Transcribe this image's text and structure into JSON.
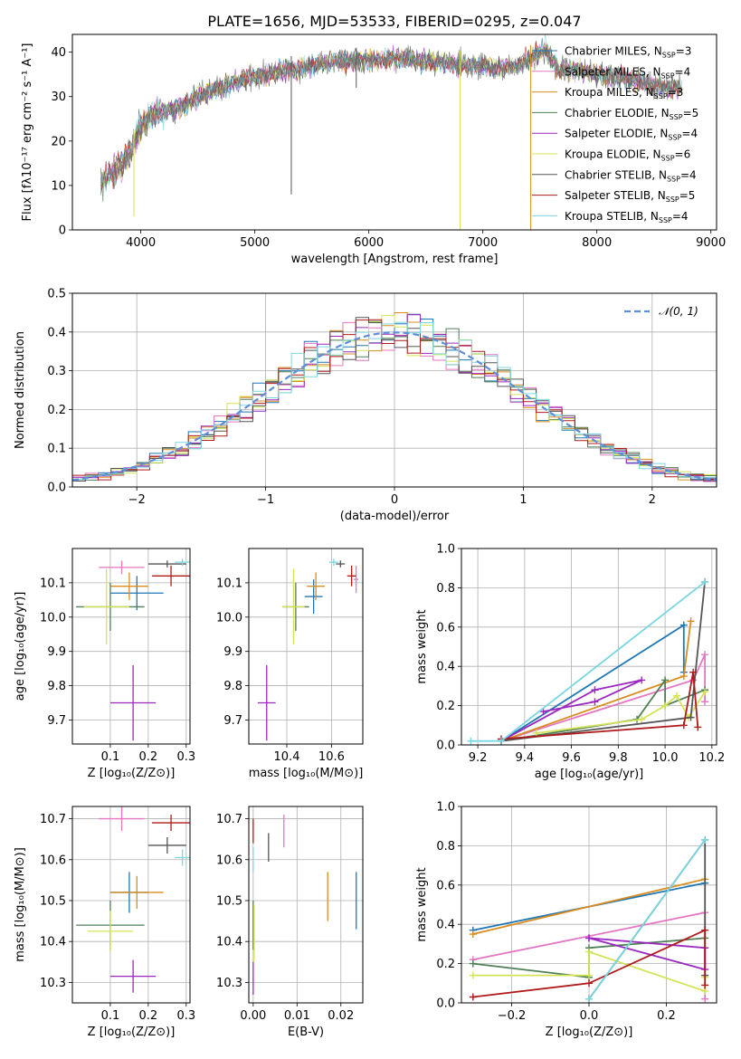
{
  "figure": {
    "title": "PLATE=1656, MJD=53533, FIBERID=0295, z=0.047"
  },
  "models": [
    {
      "id": "chabrier-miles",
      "label": "Chabrier MILES, N",
      "sub": "SSP",
      "count": "=3",
      "color": "#1f77b4"
    },
    {
      "id": "salpeter-miles",
      "label": "Salpeter MILES, N",
      "sub": "SSP",
      "count": "=4",
      "color": "#e377c2"
    },
    {
      "id": "kroupa-miles",
      "label": "Kroupa MILES, N",
      "sub": "SSP",
      "count": "=3",
      "color": "#d98c1f"
    },
    {
      "id": "chabrier-elodie",
      "label": "Chabrier ELODIE, N",
      "sub": "SSP",
      "count": "=5",
      "color": "#4f7f55"
    },
    {
      "id": "salpeter-elodie",
      "label": "Salpeter ELODIE, N",
      "sub": "SSP",
      "count": "=4",
      "color": "#9b27c0"
    },
    {
      "id": "kroupa-elodie",
      "label": "Kroupa ELODIE, N",
      "sub": "SSP",
      "count": "=6",
      "color": "#d4e357"
    },
    {
      "id": "chabrier-stelib",
      "label": "Chabrier STELIB, N",
      "sub": "SSP",
      "count": "=4",
      "color": "#555555"
    },
    {
      "id": "salpeter-stelib",
      "label": "Salpeter STELIB, N",
      "sub": "SSP",
      "count": "=5",
      "color": "#b01a1a"
    },
    {
      "id": "kroupa-stelib",
      "label": "Kroupa STELIB, N",
      "sub": "SSP",
      "count": "=4",
      "color": "#7ad6e0"
    }
  ],
  "chart_data": [
    {
      "id": "spectrum",
      "type": "line",
      "xlabel": "wavelength [Angstrom, rest frame]",
      "ylabel": "Flux [fλ10⁻¹⁷ erg cm⁻² s⁻¹ A⁻¹]",
      "xlim": [
        3400,
        9050
      ],
      "ylim": [
        0,
        44
      ],
      "xticks": [
        4000,
        5000,
        6000,
        7000,
        8000,
        9000
      ],
      "yticks": [
        0,
        10,
        20,
        30,
        40
      ],
      "grid": false,
      "legend": "top-right",
      "continuum_x": [
        3650,
        3700,
        3800,
        3900,
        4000,
        4100,
        4300,
        4500,
        4700,
        4900,
        5100,
        5300,
        5500,
        5700,
        5900,
        6100,
        6300,
        6500,
        6700,
        6900,
        7100,
        7300,
        7450,
        7550,
        7650,
        7800,
        8000,
        8200,
        8400,
        8600,
        8750
      ],
      "continuum_y": [
        10,
        12,
        14,
        17,
        23,
        26,
        27,
        30,
        32,
        34,
        35,
        36,
        37,
        38,
        38,
        38.5,
        38.5,
        38,
        37.5,
        37,
        36.5,
        37,
        39,
        41,
        36,
        36,
        35,
        34.5,
        33,
        32,
        32
      ],
      "drops": [
        {
          "x": 5320,
          "y": 8
        },
        {
          "x": 5890,
          "y": 32
        },
        {
          "x": 6800,
          "y": 0
        },
        {
          "x": 7420,
          "y": 0
        },
        {
          "x": 3940,
          "y": 3
        }
      ]
    },
    {
      "id": "residual-histogram",
      "type": "line",
      "xlabel": "(data-model)/error",
      "ylabel": "Normed distribution",
      "xlim": [
        -2.5,
        2.5
      ],
      "ylim": [
        0,
        0.5
      ],
      "xticks": [
        -2,
        -1,
        0,
        1,
        2
      ],
      "yticks": [
        0.0,
        0.1,
        0.2,
        0.3,
        0.4,
        0.5
      ],
      "grid": true,
      "legend": "top-right",
      "reference": {
        "name": "𝒩(0, 1)",
        "color": "#5b8fd9",
        "mean": 0,
        "sigma": 1
      },
      "bin_width": 0.1
    },
    {
      "id": "age-vs-metallicity",
      "type": "scatter",
      "xlabel": "Z [log₁₀(Z/Z⊙)]",
      "ylabel": "age  [log₁₀(age/yr)]",
      "xlim": [
        0,
        0.31
      ],
      "ylim": [
        9.63,
        10.2
      ],
      "xticks": [
        0.1,
        0.2,
        0.3
      ],
      "yticks": [
        9.7,
        9.8,
        9.9,
        10.0,
        10.1
      ],
      "grid": true,
      "points": [
        {
          "model": "chabrier-miles",
          "x": 0.17,
          "xerr": 0.07,
          "y": 10.07,
          "yerr": 0.05
        },
        {
          "model": "salpeter-miles",
          "x": 0.13,
          "xerr": 0.06,
          "y": 10.145,
          "yerr": 0.02
        },
        {
          "model": "kroupa-miles",
          "x": 0.15,
          "xerr": 0.05,
          "y": 10.09,
          "yerr": 0.04
        },
        {
          "model": "chabrier-elodie",
          "x": 0.1,
          "xerr": 0.09,
          "y": 10.03,
          "yerr": 0.07
        },
        {
          "model": "salpeter-elodie",
          "x": 0.16,
          "xerr": 0.06,
          "y": 9.75,
          "yerr": 0.11
        },
        {
          "model": "kroupa-elodie",
          "x": 0.09,
          "xerr": 0.06,
          "y": 10.03,
          "yerr": 0.11
        },
        {
          "model": "chabrier-stelib",
          "x": 0.25,
          "xerr": 0.05,
          "y": 10.155,
          "yerr": 0.01
        },
        {
          "model": "salpeter-stelib",
          "x": 0.26,
          "xerr": 0.05,
          "y": 10.12,
          "yerr": 0.03
        },
        {
          "model": "kroupa-stelib",
          "x": 0.29,
          "xerr": 0.02,
          "y": 10.16,
          "yerr": 0.01
        }
      ]
    },
    {
      "id": "age-vs-mass",
      "type": "scatter",
      "xlabel": "mass [log₁₀(M/M⊙)]",
      "ylabel": "",
      "xlim": [
        10.23,
        10.74
      ],
      "ylim": [
        9.63,
        10.2
      ],
      "xticks": [
        10.4,
        10.6
      ],
      "yticks": [
        9.7,
        9.8,
        9.9,
        10.0,
        10.1
      ],
      "grid": true,
      "points": [
        {
          "model": "chabrier-miles",
          "x": 10.52,
          "xerr": 0.04,
          "y": 10.06,
          "yerr": 0.05
        },
        {
          "model": "salpeter-miles",
          "x": 10.71,
          "xerr": 0.01,
          "y": 10.11,
          "yerr": 0.04
        },
        {
          "model": "kroupa-miles",
          "x": 10.53,
          "xerr": 0.04,
          "y": 10.09,
          "yerr": 0.04
        },
        {
          "model": "chabrier-elodie",
          "x": 10.44,
          "xerr": 0.06,
          "y": 10.03,
          "yerr": 0.07
        },
        {
          "model": "salpeter-elodie",
          "x": 10.31,
          "xerr": 0.04,
          "y": 9.75,
          "yerr": 0.11
        },
        {
          "model": "kroupa-elodie",
          "x": 10.43,
          "xerr": 0.05,
          "y": 10.03,
          "yerr": 0.11
        },
        {
          "model": "chabrier-stelib",
          "x": 10.64,
          "xerr": 0.02,
          "y": 10.155,
          "yerr": 0.01
        },
        {
          "model": "salpeter-stelib",
          "x": 10.69,
          "xerr": 0.02,
          "y": 10.12,
          "yerr": 0.03
        },
        {
          "model": "kroupa-stelib",
          "x": 10.61,
          "xerr": 0.02,
          "y": 10.16,
          "yerr": 0.01
        }
      ]
    },
    {
      "id": "massweight-vs-age",
      "type": "line",
      "xlabel": "age  [log₁₀(age/yr)]",
      "ylabel": "mass weight",
      "xlim": [
        9.13,
        10.22
      ],
      "ylim": [
        0,
        1.0
      ],
      "xticks": [
        9.2,
        9.4,
        9.6,
        9.8,
        10.0,
        10.2
      ],
      "yticks": [
        0.0,
        0.2,
        0.4,
        0.6,
        0.8,
        1.0
      ],
      "grid": true,
      "series": [
        {
          "model": "chabrier-miles",
          "x": [
            9.3,
            10.08,
            10.08
          ],
          "y": [
            0.02,
            0.61,
            0.37
          ]
        },
        {
          "model": "salpeter-miles",
          "x": [
            9.3,
            10.12,
            10.17,
            10.17
          ],
          "y": [
            0.02,
            0.33,
            0.46,
            0.22
          ]
        },
        {
          "model": "kroupa-miles",
          "x": [
            9.3,
            10.08,
            10.11
          ],
          "y": [
            0.02,
            0.35,
            0.63
          ]
        },
        {
          "model": "chabrier-elodie",
          "x": [
            9.3,
            9.88,
            10.0,
            10.0,
            10.17
          ],
          "y": [
            0.02,
            0.13,
            0.33,
            0.2,
            0.28
          ]
        },
        {
          "model": "salpeter-elodie",
          "x": [
            9.48,
            9.7,
            9.9,
            9.7,
            9.3
          ],
          "y": [
            0.17,
            0.22,
            0.33,
            0.28,
            0.02
          ]
        },
        {
          "model": "kroupa-elodie",
          "x": [
            9.45,
            9.9,
            10.0,
            10.05,
            10.1,
            10.17
          ],
          "y": [
            0.06,
            0.13,
            0.2,
            0.25,
            0.14,
            0.27
          ]
        },
        {
          "model": "chabrier-stelib",
          "x": [
            9.3,
            10.11,
            10.17
          ],
          "y": [
            0.02,
            0.14,
            0.83
          ]
        },
        {
          "model": "salpeter-stelib",
          "x": [
            9.3,
            10.08,
            10.12,
            10.14
          ],
          "y": [
            0.03,
            0.1,
            0.37,
            0.09
          ]
        },
        {
          "model": "kroupa-stelib",
          "x": [
            9.17,
            9.3,
            10.17
          ],
          "y": [
            0.02,
            0.02,
            0.83
          ]
        }
      ]
    },
    {
      "id": "mass-vs-metallicity",
      "type": "scatter",
      "xlabel": "Z [log₁₀(Z/Z⊙)]",
      "ylabel": "mass [log₁₀(M/M⊙)]",
      "xlim": [
        0,
        0.31
      ],
      "ylim": [
        10.25,
        10.73
      ],
      "xticks": [
        0.1,
        0.2,
        0.3
      ],
      "yticks": [
        10.3,
        10.4,
        10.5,
        10.6,
        10.7
      ],
      "grid": true,
      "points": [
        {
          "model": "chabrier-miles",
          "x": 0.15,
          "xerr": 0.05,
          "y": 10.52,
          "yerr": 0.05
        },
        {
          "model": "salpeter-miles",
          "x": 0.13,
          "xerr": 0.06,
          "y": 10.7,
          "yerr": 0.03
        },
        {
          "model": "kroupa-miles",
          "x": 0.17,
          "xerr": 0.07,
          "y": 10.52,
          "yerr": 0.04
        },
        {
          "model": "chabrier-elodie",
          "x": 0.1,
          "xerr": 0.09,
          "y": 10.44,
          "yerr": 0.06
        },
        {
          "model": "salpeter-elodie",
          "x": 0.16,
          "xerr": 0.06,
          "y": 10.315,
          "yerr": 0.04
        },
        {
          "model": "kroupa-elodie",
          "x": 0.1,
          "xerr": 0.06,
          "y": 10.425,
          "yerr": 0.05
        },
        {
          "model": "chabrier-stelib",
          "x": 0.25,
          "xerr": 0.05,
          "y": 10.635,
          "yerr": 0.02
        },
        {
          "model": "salpeter-stelib",
          "x": 0.26,
          "xerr": 0.05,
          "y": 10.69,
          "yerr": 0.02
        },
        {
          "model": "kroupa-stelib",
          "x": 0.29,
          "xerr": 0.02,
          "y": 10.605,
          "yerr": 0.02
        }
      ]
    },
    {
      "id": "mass-vs-ebv",
      "type": "scatter",
      "xlabel": "E(B-V)",
      "ylabel": "",
      "xlim": [
        -0.001,
        0.025
      ],
      "ylim": [
        10.25,
        10.73
      ],
      "xticks": [
        0.0,
        0.01,
        0.02
      ],
      "yticks": [
        10.3,
        10.4,
        10.5,
        10.6,
        10.7
      ],
      "grid": true,
      "points": [
        {
          "model": "chabrier-miles",
          "x": 0.0235,
          "xerr": 0,
          "y": 10.5,
          "yerr": 0.07
        },
        {
          "model": "salpeter-miles",
          "x": 0.007,
          "xerr": 0,
          "y": 10.67,
          "yerr": 0.04
        },
        {
          "model": "kroupa-miles",
          "x": 0.017,
          "xerr": 0,
          "y": 10.51,
          "yerr": 0.06
        },
        {
          "model": "chabrier-elodie",
          "x": 0.0,
          "xerr": 0,
          "y": 10.44,
          "yerr": 0.06
        },
        {
          "model": "salpeter-elodie",
          "x": 0.0,
          "xerr": 0,
          "y": 10.31,
          "yerr": 0.04
        },
        {
          "model": "kroupa-elodie",
          "x": 0.0002,
          "xerr": 0,
          "y": 10.42,
          "yerr": 0.07
        },
        {
          "model": "chabrier-stelib",
          "x": 0.0035,
          "xerr": 0,
          "y": 10.63,
          "yerr": 0.035
        },
        {
          "model": "salpeter-stelib",
          "x": 0.0,
          "xerr": 0,
          "y": 10.67,
          "yerr": 0.03
        },
        {
          "model": "kroupa-stelib",
          "x": 0.0,
          "xerr": 0,
          "y": 10.6,
          "yerr": 0.03
        }
      ]
    },
    {
      "id": "massweight-vs-metallicity",
      "type": "line",
      "xlabel": "Z [log₁₀(Z/Z⊙)]",
      "ylabel": "mass weight",
      "xlim": [
        -0.33,
        0.33
      ],
      "ylim": [
        0,
        1.0
      ],
      "xticks": [
        -0.2,
        0.0,
        0.2
      ],
      "yticks": [
        0.0,
        0.2,
        0.4,
        0.6,
        0.8,
        1.0
      ],
      "grid": true,
      "series": [
        {
          "model": "chabrier-miles",
          "x": [
            -0.3,
            0.3
          ],
          "y": [
            0.37,
            0.61
          ]
        },
        {
          "model": "salpeter-miles",
          "x": [
            -0.3,
            0.3,
            0.3
          ],
          "y": [
            0.22,
            0.46,
            0.02
          ]
        },
        {
          "model": "kroupa-miles",
          "x": [
            -0.3,
            0.3
          ],
          "y": [
            0.35,
            0.63
          ]
        },
        {
          "model": "chabrier-elodie",
          "x": [
            -0.3,
            0.0,
            0.0,
            0.3
          ],
          "y": [
            0.2,
            0.13,
            0.28,
            0.33
          ]
        },
        {
          "model": "salpeter-elodie",
          "x": [
            0.0,
            0.3,
            0.3,
            0.0
          ],
          "y": [
            0.33,
            0.17,
            0.28,
            0.33
          ]
        },
        {
          "model": "kroupa-elodie",
          "x": [
            -0.3,
            0.0,
            0.0,
            0.3,
            0.3
          ],
          "y": [
            0.14,
            0.14,
            0.26,
            0.06,
            0.13
          ]
        },
        {
          "model": "chabrier-stelib",
          "x": [
            0.0,
            0.3,
            0.3
          ],
          "y": [
            0.02,
            0.83,
            0.14
          ]
        },
        {
          "model": "salpeter-stelib",
          "x": [
            -0.3,
            0.0,
            0.3,
            0.3
          ],
          "y": [
            0.03,
            0.1,
            0.37,
            0.09
          ]
        },
        {
          "model": "kroupa-stelib",
          "x": [
            0.0,
            0.3
          ],
          "y": [
            0.02,
            0.83
          ]
        }
      ]
    }
  ]
}
